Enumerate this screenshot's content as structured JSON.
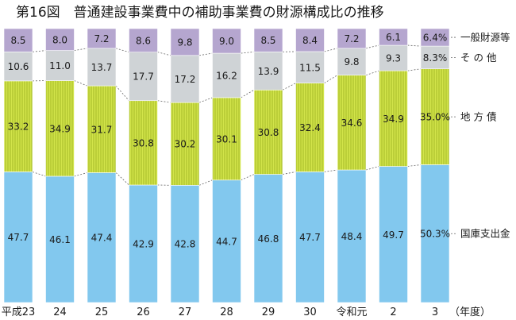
{
  "chart_data": {
    "type": "bar",
    "stacked": true,
    "normalized": true,
    "title": "第16図　普通建設事業費中の補助事業費の財源構成比の推移",
    "categories": [
      "平成23",
      "24",
      "25",
      "26",
      "27",
      "28",
      "29",
      "30",
      "令和元",
      "2",
      "3"
    ],
    "x_unit": "（年度）",
    "series": [
      {
        "name": "国庫支出金",
        "color": "#82c8ee",
        "values": [
          47.7,
          46.1,
          47.4,
          42.9,
          42.8,
          44.7,
          46.8,
          47.7,
          48.4,
          49.7,
          50.3
        ]
      },
      {
        "name": "地方債",
        "color": "#c7dc3e",
        "values": [
          33.2,
          34.9,
          31.7,
          30.8,
          30.2,
          30.1,
          30.8,
          32.4,
          34.6,
          34.9,
          35.0
        ]
      },
      {
        "name": "そ の 他",
        "color": "#cfd3d6",
        "values": [
          10.6,
          11.0,
          13.7,
          17.7,
          17.2,
          16.2,
          13.9,
          11.5,
          9.8,
          9.3,
          8.3
        ]
      },
      {
        "name": "一般財源等",
        "color": "#b5a6cf",
        "values": [
          8.5,
          8.0,
          7.2,
          8.6,
          9.8,
          9.0,
          8.5,
          8.4,
          7.2,
          6.1,
          6.4
        ]
      }
    ],
    "labels": [
      [
        "47.7",
        "46.1",
        "47.4",
        "42.9",
        "42.8",
        "44.7",
        "46.8",
        "47.7",
        "48.4",
        "49.7",
        "50.3%"
      ],
      [
        "33.2",
        "34.9",
        "31.7",
        "30.8",
        "30.2",
        "30.1",
        "30.8",
        "32.4",
        "34.6",
        "34.9",
        "35.0%"
      ],
      [
        "10.6",
        "11.0",
        "13.7",
        "17.7",
        "17.2",
        "16.2",
        "13.9",
        "11.5",
        "9.8",
        "9.3",
        "8.3%"
      ],
      [
        "8.5",
        "8.0",
        "7.2",
        "8.6",
        "9.8",
        "9.0",
        "8.5",
        "8.4",
        "7.2",
        "6.1",
        "6.4%"
      ]
    ],
    "legend": [
      "国庫支出金",
      "地方債",
      "そ の 他",
      "一般財源等"
    ],
    "legend_labels": [
      "国庫支出金",
      "地 方 債",
      "そ の 他",
      "一般財源等"
    ],
    "ylim": [
      0,
      100
    ]
  }
}
